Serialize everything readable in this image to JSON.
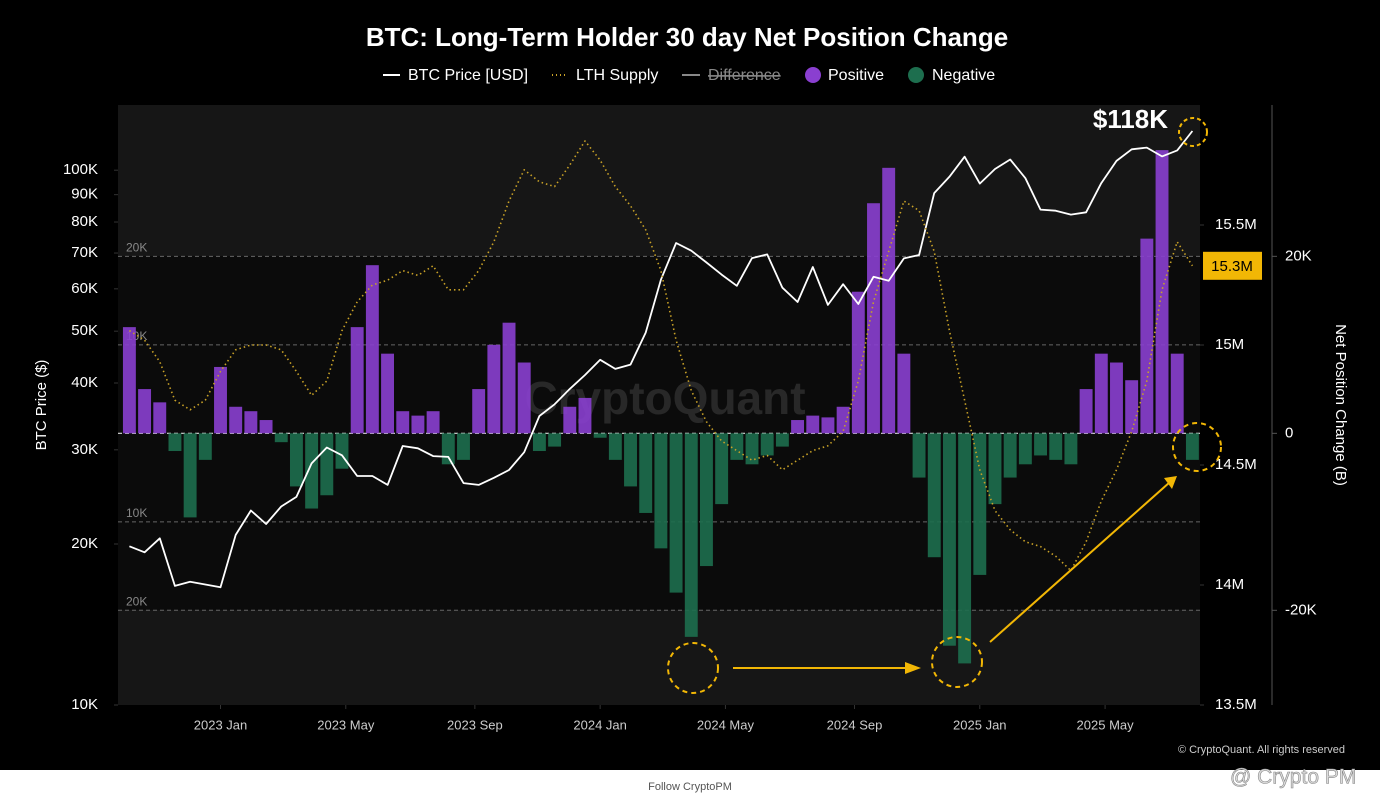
{
  "chart_data": {
    "type": "bar",
    "title": "BTC: Long-Term Holder 30 day Net Position Change",
    "watermark": "CryptoQuant",
    "copyright": "© CryptoQuant. All rights reserved",
    "footer": "Follow CryptoPM",
    "credit": "@ Crypto PM",
    "ylabel": "BTC Price ($)",
    "y3label": "Net Position Change (B)",
    "log_y": true,
    "x": [
      2022.76,
      2022.8,
      2022.84,
      2022.88,
      2022.92,
      2022.96,
      2023,
      2023.04,
      2023.08,
      2023.12,
      2023.16,
      2023.2,
      2023.24,
      2023.28,
      2023.32,
      2023.36,
      2023.4,
      2023.44,
      2023.48,
      2023.52,
      2023.56,
      2023.6,
      2023.64,
      2023.68,
      2023.72,
      2023.76,
      2023.8,
      2023.84,
      2023.88,
      2023.92,
      2023.96,
      2024,
      2024.04,
      2024.08,
      2024.12,
      2024.16,
      2024.2,
      2024.24,
      2024.28,
      2024.32,
      2024.36,
      2024.4,
      2024.44,
      2024.48,
      2024.52,
      2024.56,
      2024.6,
      2024.64,
      2024.68,
      2024.72,
      2024.76,
      2024.8,
      2024.84,
      2024.88,
      2024.92,
      2024.96,
      2025,
      2025.04,
      2025.08,
      2025.12,
      2025.16,
      2025.2,
      2025.24,
      2025.28,
      2025.32,
      2025.36,
      2025.4,
      2025.44,
      2025.48,
      2025.52,
      2025.56
    ],
    "xlim": [
      2022.73,
      2025.58
    ],
    "xticks": [
      {
        "value": 2023,
        "label": "2023 Jan"
      },
      {
        "value": 2023.33,
        "label": "2023 May"
      },
      {
        "value": 2023.67,
        "label": "2023 Sep"
      },
      {
        "value": 2024,
        "label": "2024 Jan"
      },
      {
        "value": 2024.33,
        "label": "2024 May"
      },
      {
        "value": 2024.67,
        "label": "2024 Sep"
      },
      {
        "value": 2025,
        "label": "2025 Jan"
      },
      {
        "value": 2025.33,
        "label": "2025 May"
      }
    ],
    "ylim": [
      10000,
      132400
    ],
    "yticks": [
      {
        "value": 10000,
        "label": "10K"
      },
      {
        "value": 20000,
        "label": "20K"
      },
      {
        "value": 30000,
        "label": "30K"
      },
      {
        "value": 40000,
        "label": "40K"
      },
      {
        "value": 50000,
        "label": "50K"
      },
      {
        "value": 60000,
        "label": "60K"
      },
      {
        "value": 70000,
        "label": "70K"
      },
      {
        "value": 80000,
        "label": "80K"
      },
      {
        "value": 90000,
        "label": "90K"
      },
      {
        "value": 100000,
        "label": "100K"
      }
    ],
    "y2lim": [
      13500000,
      16000000
    ],
    "y2ticks": [
      {
        "value": 13500000,
        "label": "13.5M"
      },
      {
        "value": 14000000,
        "label": "14M"
      },
      {
        "value": 14500000,
        "label": "14.5M"
      },
      {
        "value": 15000000,
        "label": "15M"
      },
      {
        "value": 15500000,
        "label": "15.5M"
      }
    ],
    "y3lim": [
      -30700,
      37100
    ],
    "y3ticks": [
      {
        "value": -20000,
        "label": "-20K"
      },
      0,
      {
        "value": 20000,
        "label": "20K"
      }
    ],
    "y3grid": [
      {
        "value": 20000,
        "label": "20K"
      },
      {
        "value": 10000,
        "label": "10K"
      },
      {
        "value": -10000,
        "label": "10K"
      },
      {
        "value": -20000,
        "label": "20K"
      }
    ],
    "series": [
      {
        "name": "BTC Price [USD]",
        "color": "#ffffff",
        "values": [
          19800,
          19300,
          20500,
          16700,
          17000,
          16800,
          16600,
          20800,
          23100,
          21800,
          23500,
          24500,
          28300,
          30300,
          29300,
          26800,
          26800,
          25800,
          30500,
          30200,
          29200,
          29100,
          26000,
          25800,
          26600,
          27500,
          29700,
          34700,
          36500,
          39000,
          41400,
          44200,
          42500,
          43300,
          49700,
          62400,
          73100,
          70700,
          67200,
          63800,
          60800,
          68500,
          69600,
          60300,
          56700,
          65900,
          56000,
          61200,
          56200,
          63200,
          62100,
          68400,
          69400,
          90600,
          97200,
          106000,
          94400,
          100500,
          104700,
          96600,
          84400,
          84000,
          82600,
          83400,
          94600,
          104100,
          109400,
          110200,
          106100,
          108900,
          118400
        ],
        "value_labels": [
          null,
          null,
          null,
          null,
          null,
          null,
          null,
          null,
          null,
          null,
          null,
          null,
          null,
          null,
          null,
          null,
          null,
          null,
          null,
          null,
          null,
          null,
          null,
          null,
          null,
          null,
          null,
          null,
          null,
          null,
          null,
          null,
          null,
          null,
          null,
          null,
          null,
          null,
          null,
          null,
          null,
          null,
          null,
          null,
          null,
          null,
          null,
          null,
          null,
          null,
          null,
          null,
          null,
          null,
          null,
          null,
          null,
          null,
          null,
          null,
          null,
          null,
          null,
          null,
          null,
          null,
          null,
          null,
          null,
          null,
          "$118K"
        ]
      },
      {
        "name": "LTH Supply",
        "color": "#c9a227",
        "axis": "y2",
        "values": [
          15060000,
          15020000,
          14930000,
          14770000,
          14730000,
          14770000,
          14890000,
          14980000,
          15000000,
          15000000,
          14980000,
          14890000,
          14790000,
          14850000,
          15060000,
          15180000,
          15250000,
          15270000,
          15310000,
          15290000,
          15330000,
          15230000,
          15230000,
          15310000,
          15430000,
          15600000,
          15730000,
          15680000,
          15660000,
          15750000,
          15850000,
          15770000,
          15660000,
          15580000,
          15480000,
          15310000,
          15020000,
          14810000,
          14680000,
          14600000,
          14560000,
          14520000,
          14540000,
          14480000,
          14520000,
          14560000,
          14580000,
          14640000,
          14850000,
          15180000,
          15390000,
          15600000,
          15560000,
          15390000,
          15060000,
          14770000,
          14480000,
          14310000,
          14230000,
          14180000,
          14160000,
          14120000,
          14060000,
          14180000,
          14350000,
          14480000,
          14640000,
          14850000,
          15230000,
          15430000,
          15330000
        ],
        "value_labels": [
          null,
          null,
          null,
          null,
          null,
          null,
          null,
          null,
          null,
          null,
          null,
          null,
          null,
          null,
          null,
          null,
          null,
          null,
          null,
          null,
          null,
          null,
          null,
          null,
          null,
          null,
          null,
          null,
          null,
          null,
          null,
          null,
          null,
          null,
          null,
          null,
          null,
          null,
          null,
          null,
          null,
          null,
          null,
          null,
          null,
          null,
          null,
          null,
          null,
          null,
          null,
          null,
          null,
          null,
          null,
          null,
          null,
          null,
          null,
          null,
          null,
          null,
          null,
          null,
          null,
          null,
          null,
          null,
          null,
          null,
          "15.3M"
        ]
      },
      {
        "name": "Difference",
        "color": "#888888",
        "axis": "y3",
        "hidden": true,
        "values": [
          12000,
          5000,
          3500,
          -2000,
          -9500,
          -3000,
          7500,
          3000,
          2500,
          1500,
          -1000,
          -6000,
          -8500,
          -7000,
          -4000,
          12000,
          19000,
          9000,
          2500,
          2000,
          2500,
          -3500,
          -3000,
          5000,
          10000,
          12500,
          8000,
          -2000,
          -1500,
          3000,
          4000,
          -500,
          -3000,
          -6000,
          -9000,
          -13000,
          -18000,
          -23000,
          -15000,
          -8000,
          -3000,
          -3500,
          -2500,
          -1500,
          1500,
          2000,
          1800,
          3000,
          16000,
          26000,
          30000,
          9000,
          -5000,
          -14000,
          -24000,
          -26000,
          -16000,
          -8000,
          -5000,
          -3500,
          -2500,
          -3000,
          -3500,
          5000,
          9000,
          8000,
          6000,
          22000,
          32000,
          9000,
          -3000
        ]
      }
    ],
    "bar_legend": [
      {
        "name": "Positive",
        "color": "#8a3fd0"
      },
      {
        "name": "Negative",
        "color": "#1d6e4e"
      }
    ]
  }
}
